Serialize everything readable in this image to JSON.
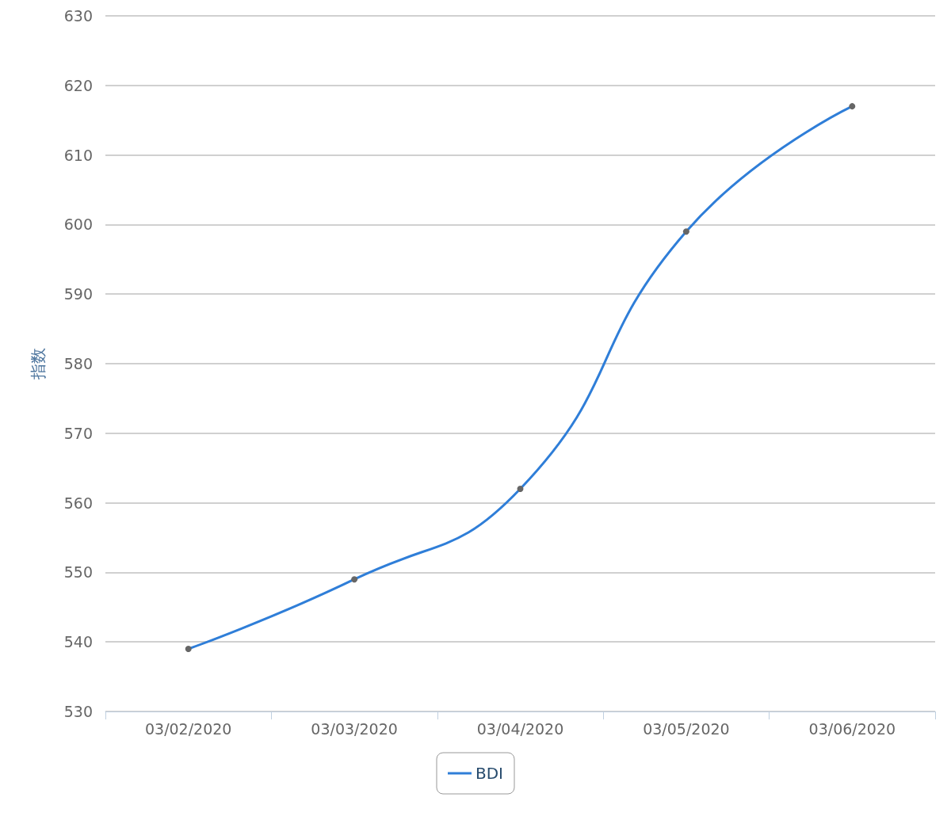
{
  "chart_data": {
    "type": "line",
    "ylabel": "指数",
    "categories": [
      "03/02/2020",
      "03/03/2020",
      "03/04/2020",
      "03/05/2020",
      "03/06/2020"
    ],
    "series": [
      {
        "name": "BDI",
        "color": "#2f7ed8",
        "values": [
          539,
          549,
          562,
          599,
          617
        ]
      }
    ],
    "ylim": [
      530,
      630
    ],
    "yticks": [
      530,
      540,
      550,
      560,
      570,
      580,
      590,
      600,
      610,
      620,
      630
    ],
    "grid": "y",
    "legend": "bottom",
    "marker": "circle",
    "line_style": "solid"
  }
}
